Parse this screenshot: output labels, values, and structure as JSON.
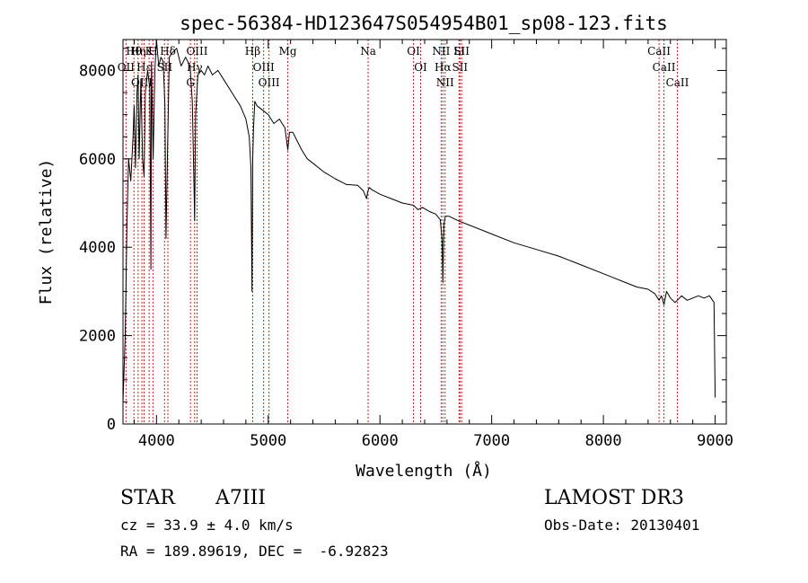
{
  "chart_data": {
    "type": "line",
    "title": "spec-56384-HD123647S054954B01_sp08-123.fits",
    "xlabel": "Wavelength (Å)",
    "ylabel": "Flux (relative)",
    "xlim": [
      3700,
      9100
    ],
    "ylim": [
      0,
      8700
    ],
    "x_ticks": [
      4000,
      5000,
      6000,
      7000,
      8000,
      9000
    ],
    "y_ticks": [
      0,
      2000,
      4000,
      6000,
      8000
    ],
    "x_tick_labels": [
      "4000",
      "5000",
      "6000",
      "7000",
      "8000",
      "9000"
    ],
    "y_tick_labels": [
      "0",
      "2000",
      "4000",
      "6000",
      "8000"
    ],
    "series": [
      {
        "name": "flux",
        "x": [
          3700,
          3720,
          3735,
          3750,
          3770,
          3790,
          3800,
          3812,
          3825,
          3835,
          3845,
          3860,
          3875,
          3889,
          3900,
          3920,
          3940,
          3950,
          3955,
          3970,
          3985,
          4000,
          4020,
          4040,
          4060,
          4075,
          4085,
          4101,
          4115,
          4140,
          4180,
          4220,
          4260,
          4300,
          4320,
          4335,
          4341,
          4350,
          4370,
          4400,
          4430,
          4460,
          4500,
          4550,
          4600,
          4650,
          4700,
          4750,
          4800,
          4830,
          4845,
          4855,
          4861,
          4868,
          4880,
          4900,
          4950,
          5000,
          5050,
          5100,
          5150,
          5175,
          5190,
          5220,
          5260,
          5300,
          5350,
          5400,
          5500,
          5600,
          5700,
          5800,
          5850,
          5880,
          5890,
          5896,
          5905,
          5930,
          6000,
          6100,
          6200,
          6300,
          6340,
          6380,
          6450,
          6500,
          6540,
          6555,
          6563,
          6572,
          6585,
          6620,
          6700,
          6800,
          6900,
          7000,
          7200,
          7400,
          7600,
          7800,
          8000,
          8100,
          8200,
          8300,
          8400,
          8460,
          8498,
          8520,
          8542,
          8565,
          8600,
          8640,
          8662,
          8700,
          8750,
          8800,
          8850,
          8900,
          8950,
          8990,
          9000
        ],
        "y": [
          500,
          2000,
          4500,
          6000,
          5500,
          6500,
          7200,
          5800,
          7500,
          7900,
          6000,
          7800,
          6000,
          5600,
          7500,
          8000,
          7600,
          3500,
          8200,
          6000,
          8000,
          8700,
          8100,
          8300,
          8200,
          7200,
          4200,
          6500,
          8300,
          8400,
          8500,
          8100,
          8300,
          8100,
          7300,
          5500,
          4600,
          7000,
          7900,
          8000,
          7900,
          8100,
          7900,
          8000,
          7800,
          7600,
          7400,
          7200,
          6900,
          6500,
          5800,
          3000,
          6000,
          6700,
          7300,
          7200,
          7100,
          7000,
          6800,
          6900,
          6700,
          6200,
          6600,
          6600,
          6400,
          6200,
          6000,
          5900,
          5700,
          5550,
          5420,
          5400,
          5280,
          5100,
          5250,
          5300,
          5350,
          5300,
          5200,
          5100,
          5000,
          4950,
          4850,
          4900,
          4800,
          4750,
          4620,
          4200,
          3200,
          4500,
          4700,
          4700,
          4600,
          4500,
          4400,
          4300,
          4100,
          3950,
          3800,
          3600,
          3400,
          3300,
          3200,
          3100,
          3050,
          2950,
          2800,
          2900,
          2700,
          3000,
          2850,
          2750,
          2800,
          2900,
          2800,
          2850,
          2900,
          2850,
          2900,
          2750,
          600
        ]
      }
    ],
    "line_annotations": [
      {
        "label": "Hθ",
        "x": 3798
      },
      {
        "label": "OII",
        "x": 3727
      },
      {
        "label": "OIII",
        "x": 3869
      },
      {
        "label": "Hη",
        "x": 3835
      },
      {
        "label": "Hε",
        "x": 3889
      },
      {
        "label": "K",
        "x": 3934
      },
      {
        "label": "H",
        "x": 3968
      },
      {
        "label": "SII",
        "x": 4072
      },
      {
        "label": "Hδ",
        "x": 4102
      },
      {
        "label": "OIII",
        "x": 4363
      },
      {
        "label": "Hγ",
        "x": 4341
      },
      {
        "label": "G",
        "x": 4304
      },
      {
        "label": "Hβ",
        "x": 4861
      },
      {
        "label": "OIII",
        "x": 4959
      },
      {
        "label": "OIII",
        "x": 5007
      },
      {
        "label": "Mg",
        "x": 5175
      },
      {
        "label": "Na",
        "x": 5894
      },
      {
        "label": "OI",
        "x": 6300
      },
      {
        "label": "OI",
        "x": 6364
      },
      {
        "label": "NII",
        "x": 6548
      },
      {
        "label": "Hα",
        "x": 6563
      },
      {
        "label": "NII",
        "x": 6583
      },
      {
        "label": "SII",
        "x": 6716
      },
      {
        "label": "Li",
        "x": 6708
      },
      {
        "label": "SII",
        "x": 6731
      },
      {
        "label": "CaII",
        "x": 8498
      },
      {
        "label": "CaII",
        "x": 8542
      },
      {
        "label": "CaII",
        "x": 8662
      }
    ]
  },
  "info": {
    "object_type": "STAR",
    "spectral_class": "A7III",
    "survey": "LAMOST DR3",
    "cz": "cz = 33.9 ± 4.0 km/s",
    "obs_date": "Obs-Date: 20130401",
    "coords": "RA = 189.89619, DEC =  -6.92823"
  },
  "colors": {
    "spectrum": "#000000",
    "line_markers": "#cc2222",
    "axes": "#000000"
  }
}
